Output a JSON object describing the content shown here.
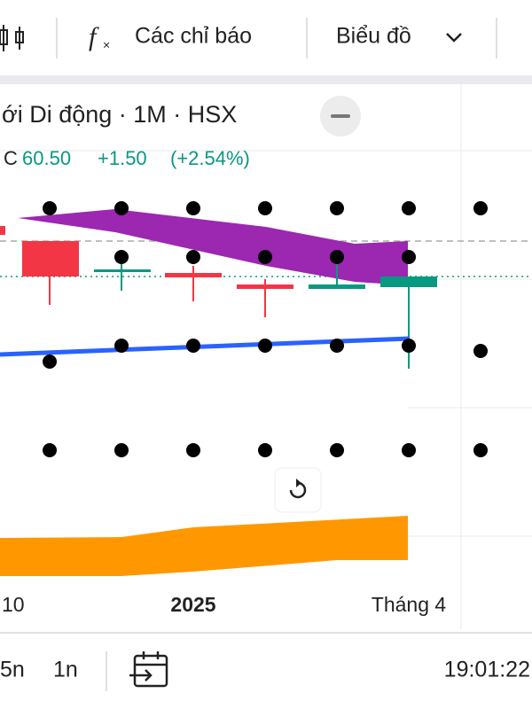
{
  "toolbar": {
    "indicators": "Các chỉ báo",
    "chart": "Biểu đồ"
  },
  "header": {
    "title": "ới Di động · 1M · HSX",
    "close_label": "C",
    "close": "60.50",
    "change": "+1.50",
    "change_pct": "(+2.54%)"
  },
  "x_axis": [
    "10",
    "2025",
    "Tháng 4"
  ],
  "footer": {
    "ranges": [
      "5n",
      "1n"
    ],
    "time": "19:01:22"
  }
}
